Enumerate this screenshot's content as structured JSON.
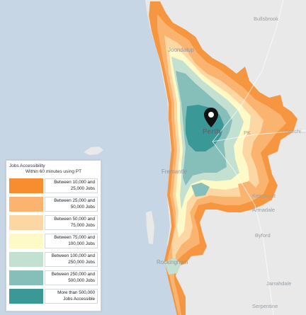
{
  "map": {
    "places": [
      {
        "id": "bullsbrook",
        "label": "Bullsbrook"
      },
      {
        "id": "joondalup",
        "label": "Joondalup"
      },
      {
        "id": "perth",
        "label": "Perth"
      },
      {
        "id": "beechina",
        "label": "Beechi..."
      },
      {
        "id": "fremantle",
        "label": "Fremantle"
      },
      {
        "id": "kelmscott",
        "label": "Kelmscott"
      },
      {
        "id": "armadale",
        "label": "Armadale"
      },
      {
        "id": "byford",
        "label": "Byford"
      },
      {
        "id": "rockingham",
        "label": "Rockingham"
      },
      {
        "id": "jarrahdale",
        "label": "Jarrahdale"
      },
      {
        "id": "serpentine",
        "label": "Serpentine"
      },
      {
        "id": "pk",
        "label": "PK"
      }
    ],
    "colors": {
      "ocean": "#c7d6e4",
      "land": "#e8e9e8",
      "marker": "#111111"
    }
  },
  "legend": {
    "title": "Jobs Accessibility",
    "subtitle": "Within 60 minutes using PT",
    "items": [
      {
        "label": "Between 10,000 and 25,000 Jobs",
        "color": "#f78d2f"
      },
      {
        "label": "Between 25,000 and 50,000 Jobs",
        "color": "#fbb470"
      },
      {
        "label": "Between 50,000 and 75,000 Jobs",
        "color": "#fdd7a3"
      },
      {
        "label": "Between 75,000 and 100,000 Jobs",
        "color": "#fdfac7"
      },
      {
        "label": "Between 100,000 and 250,000 Jobs",
        "color": "#c3e0d1"
      },
      {
        "label": "Between 250,000 and 500,000 Jobs",
        "color": "#86bfba"
      },
      {
        "label": "More than 500,000 Jobs Accessible",
        "color": "#3a9896"
      }
    ]
  }
}
